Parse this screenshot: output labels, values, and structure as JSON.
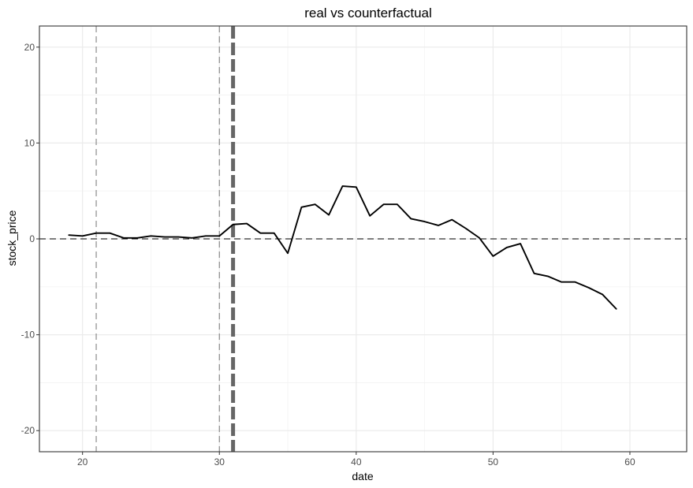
{
  "chart_data": {
    "type": "line",
    "title": "real vs counterfactual",
    "xlabel": "date",
    "ylabel": "stock_price",
    "xlim": [
      16.85,
      64.15
    ],
    "ylim": [
      -22.2,
      22.2
    ],
    "x_ticks": [
      20,
      30,
      40,
      50,
      60
    ],
    "x_tick_labels": [
      "20",
      "30",
      "40",
      "50",
      "60"
    ],
    "y_ticks": [
      -20,
      -10,
      0,
      10,
      20
    ],
    "y_tick_labels": [
      "-20",
      "-10",
      "0",
      "10",
      "20"
    ],
    "grid": true,
    "series": [
      {
        "x": [
          19,
          20,
          21,
          22,
          23,
          24,
          25,
          26,
          27,
          28,
          29,
          30,
          31,
          32,
          33,
          34,
          35,
          36,
          37,
          38,
          39,
          40,
          41,
          42,
          43,
          44,
          45,
          46,
          47,
          48,
          49,
          50,
          51,
          52,
          53,
          54,
          55,
          56,
          57,
          58,
          59
        ],
        "values": [
          0.4,
          0.3,
          0.6,
          0.6,
          0.1,
          0.1,
          0.3,
          0.2,
          0.2,
          0.1,
          0.3,
          0.3,
          1.5,
          1.6,
          0.6,
          0.6,
          -1.5,
          3.3,
          3.6,
          2.5,
          5.5,
          5.4,
          2.4,
          3.6,
          3.6,
          2.1,
          1.8,
          1.4,
          2.0,
          1.1,
          0.1,
          -1.8,
          -0.9,
          -0.5,
          -3.6,
          -3.9,
          -4.5,
          -4.5,
          -5.1,
          -5.8,
          -7.3
        ],
        "color": "#000000"
      }
    ],
    "reference_lines": {
      "horizontal": [
        {
          "y": 0,
          "style": "dashed",
          "color": "#000000"
        }
      ],
      "vertical": [
        {
          "x": 21,
          "style": "dashed",
          "color": "#808080"
        },
        {
          "x": 30,
          "style": "dashed",
          "color": "#808080"
        },
        {
          "x": 31,
          "style": "thick-dashed",
          "color": "#666666"
        }
      ]
    }
  }
}
